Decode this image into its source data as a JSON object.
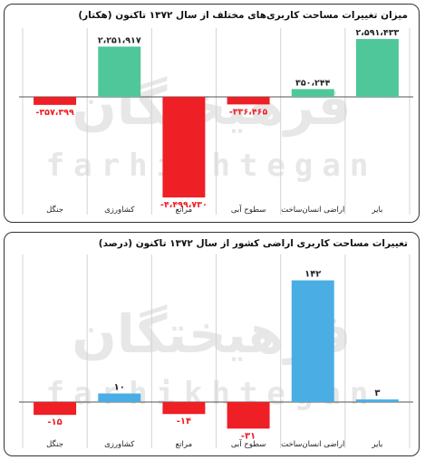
{
  "watermark": {
    "fa": "فرهیختگان",
    "en": "farhikhtegan"
  },
  "chart_data": [
    {
      "type": "bar",
      "title": "میزان تغییرات مساحت کاربری‌های مختلف از سال ۱۳۷۲ تاکنون (هکتار)",
      "categories": [
        "بایر",
        "اراضی انسان‌ساخت",
        "سطوح آبی",
        "مراتع",
        "کشاورزی",
        "جنگل"
      ],
      "values": [
        2591433,
        350244,
        -336465,
        -4499730,
        2251917,
        -357399
      ],
      "value_labels": [
        "۲،۵۹۱،۴۳۳",
        "۳۵۰،۲۴۴",
        "-۳۳۶،۴۶۵",
        "-۴،۴۹۹،۷۳۰",
        "۲،۲۵۱،۹۱۷",
        "-۳۵۷،۳۹۹"
      ],
      "ylim": [
        -4700000,
        3000000
      ],
      "positive_color": "#4fc79a",
      "negative_color": "#ee1f25",
      "grid": true
    },
    {
      "type": "bar",
      "title": "تغییرات مساحت کاربری اراضی کشور از سال ۱۳۷۲ تاکنون (درصد)",
      "categories": [
        "بایر",
        "اراضی انسان‌ساخت",
        "سطوح آبی",
        "مراتع",
        "کشاورزی",
        "جنگل"
      ],
      "values": [
        3,
        142,
        -31,
        -14,
        10,
        -15
      ],
      "value_labels": [
        "۳",
        "۱۴۲",
        "-۳۱",
        "-۱۴",
        "۱۰",
        "-۱۵"
      ],
      "ylim": [
        -37,
        168
      ],
      "positive_color": "#4aaee4",
      "negative_color": "#ee1f25",
      "grid": true
    }
  ]
}
